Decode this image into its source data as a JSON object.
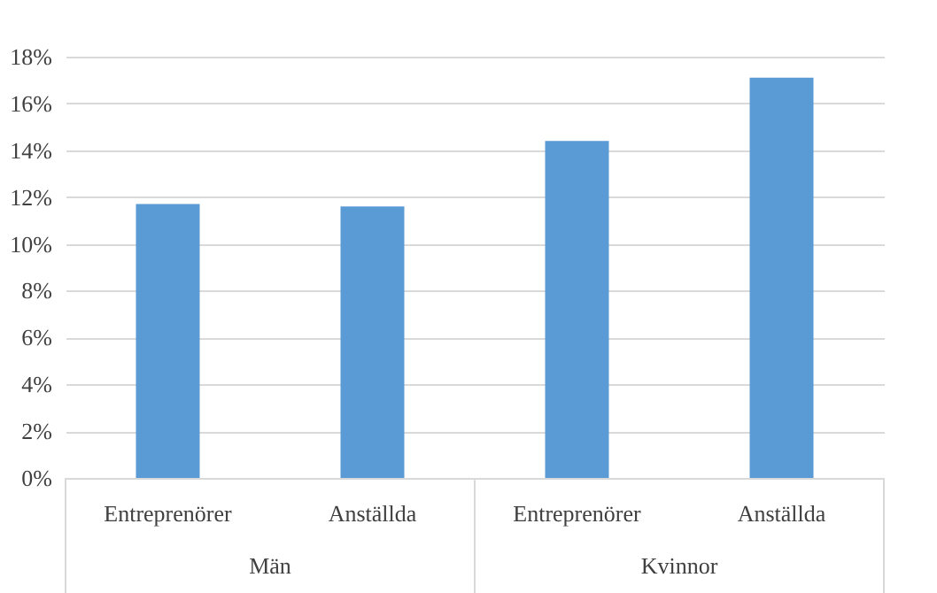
{
  "chart_data": {
    "type": "bar",
    "categories": [
      "Entreprenörer",
      "Anställda",
      "Entreprenörer",
      "Anställda"
    ],
    "values": [
      11.7,
      11.6,
      14.4,
      17.1
    ],
    "color": "#5b9bd5",
    "annotations": [
      "Män",
      "Kvinnor"
    ],
    "ylim": [
      0,
      18
    ],
    "yticks": [
      {
        "value": 0,
        "label": "0%"
      },
      {
        "value": 2,
        "label": "2%"
      },
      {
        "value": 4,
        "label": "4%"
      },
      {
        "value": 6,
        "label": "6%"
      },
      {
        "value": 8,
        "label": "8%"
      },
      {
        "value": 10,
        "label": "10%"
      },
      {
        "value": 12,
        "label": "12%"
      },
      {
        "value": 14,
        "label": "14%"
      },
      {
        "value": 16,
        "label": "16%"
      },
      {
        "value": 18,
        "label": "18%"
      }
    ],
    "grid": "y"
  }
}
